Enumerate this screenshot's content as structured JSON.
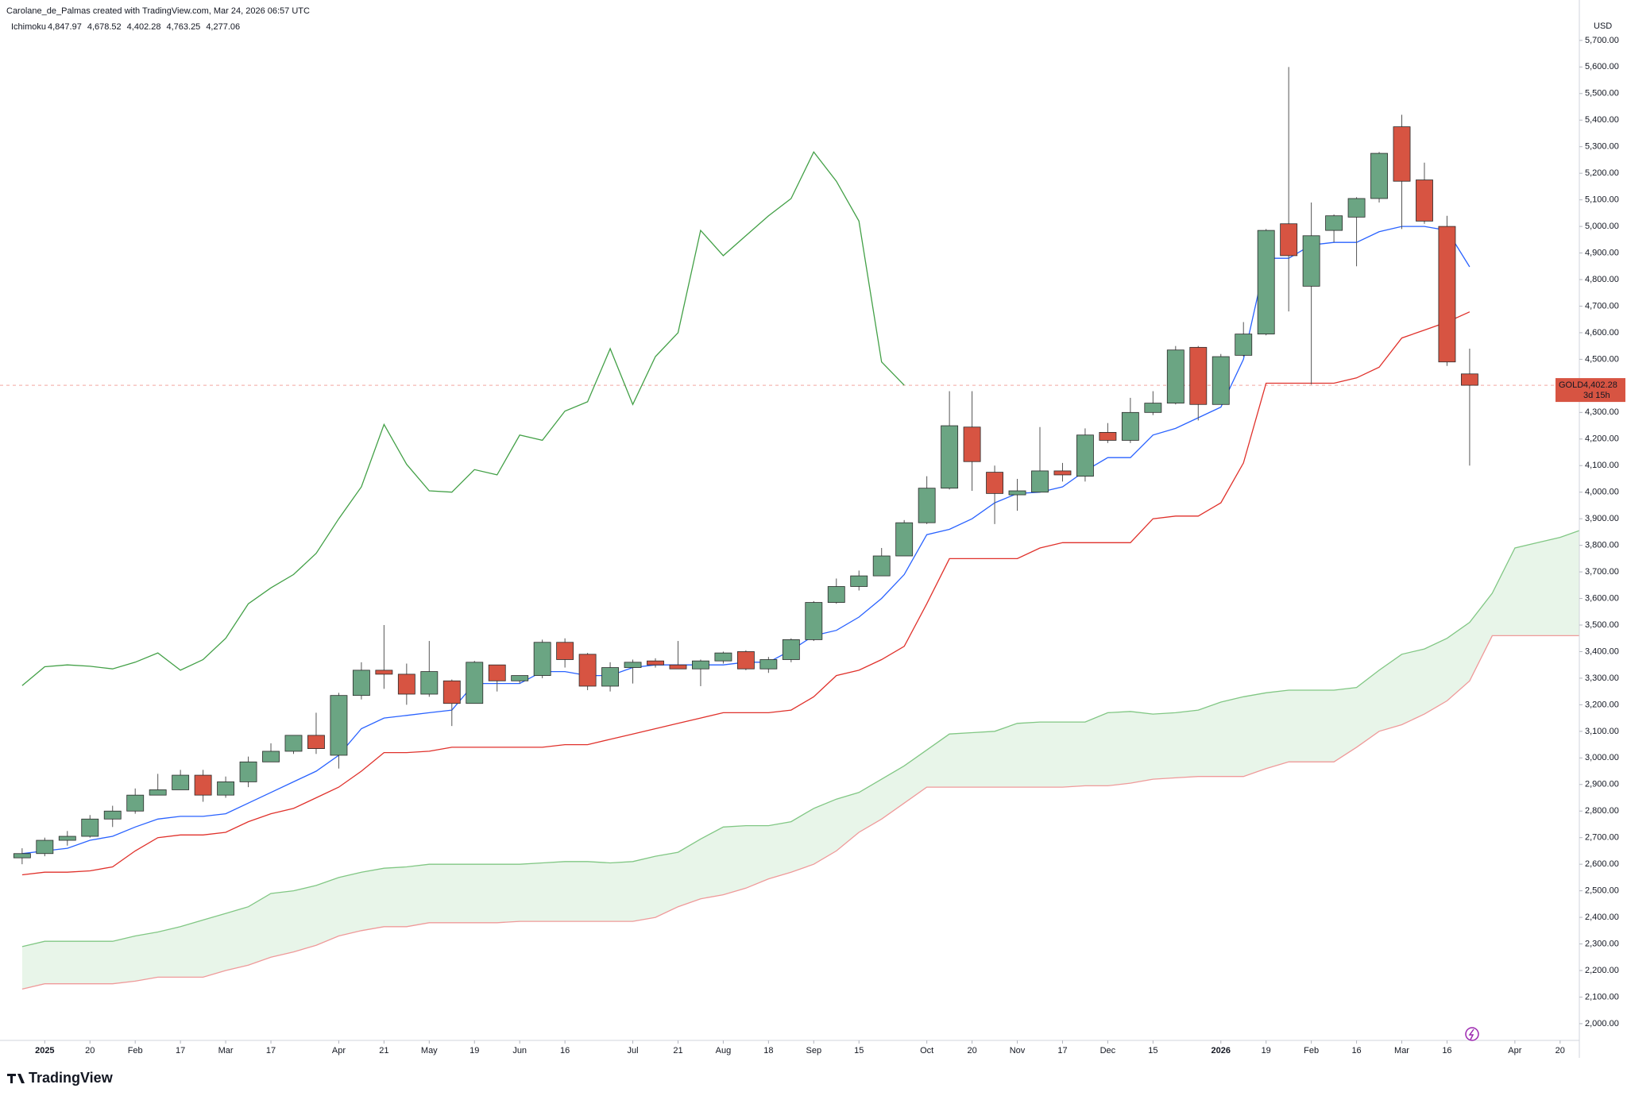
{
  "header": {
    "credit": "Carolane_de_Palmas created with TradingView.com, Mar 24, 2026 06:57 UTC"
  },
  "footer": {
    "logo": "TradingView"
  },
  "chart_data": {
    "type": "candlestick",
    "xlim": [
      -0.75,
      68.85
    ],
    "ylim": [
      1937,
      5852
    ],
    "y_unit": "USD",
    "candles": {
      "up_color": "#6ba583",
      "down_color": "#d75442",
      "open": [
        2624,
        2640,
        2690,
        2705,
        2770,
        2800,
        2860,
        2880,
        2935,
        2860,
        2910,
        2985,
        3025,
        3085,
        3010,
        3235,
        3330,
        3315,
        3240,
        3290,
        3205,
        3350,
        3290,
        3310,
        3435,
        3390,
        3270,
        3340,
        3365,
        3350,
        3335,
        3365,
        3400,
        3335,
        3370,
        3445,
        3585,
        3645,
        3685,
        3760,
        3885,
        4015,
        4245,
        4075,
        3990,
        4000,
        4080,
        4060,
        4225,
        4195,
        4300,
        4335,
        4545,
        4330,
        4515,
        4595,
        5010,
        4775,
        4985,
        5035,
        5105,
        5375,
        5175,
        5000,
        4445
      ],
      "high": [
        2660,
        2700,
        2725,
        2785,
        2820,
        2885,
        2940,
        2955,
        2955,
        2930,
        3005,
        3055,
        3085,
        3170,
        3245,
        3360,
        3500,
        3355,
        3440,
        3295,
        3365,
        3350,
        3310,
        3445,
        3450,
        3395,
        3360,
        3370,
        3375,
        3440,
        3370,
        3400,
        3405,
        3380,
        3450,
        3590,
        3675,
        3705,
        3790,
        3895,
        4060,
        4380,
        4380,
        4100,
        4050,
        4245,
        4110,
        4240,
        4260,
        4355,
        4380,
        4550,
        4550,
        4520,
        4640,
        4990,
        5600,
        5090,
        5045,
        5110,
        5280,
        5420,
        5240,
        5040,
        4540
      ],
      "low": [
        2600,
        2630,
        2670,
        2700,
        2740,
        2790,
        2860,
        2880,
        2835,
        2850,
        2890,
        2990,
        3015,
        3015,
        2960,
        3220,
        3260,
        3200,
        3230,
        3120,
        3205,
        3250,
        3280,
        3300,
        3340,
        3255,
        3250,
        3280,
        3340,
        3340,
        3270,
        3355,
        3330,
        3320,
        3360,
        3440,
        3580,
        3630,
        3685,
        3760,
        3880,
        4010,
        4005,
        3880,
        3930,
        4000,
        4040,
        4040,
        4185,
        4185,
        4290,
        4330,
        4270,
        4330,
        4510,
        4590,
        4680,
        4405,
        4940,
        4850,
        5090,
        4990,
        5010,
        4475,
        4100
      ],
      "close": [
        2640,
        2690,
        2705,
        2770,
        2800,
        2860,
        2880,
        2935,
        2860,
        2910,
        2985,
        3025,
        3085,
        3035,
        3235,
        3330,
        3315,
        3240,
        3325,
        3205,
        3360,
        3290,
        3310,
        3435,
        3370,
        3270,
        3340,
        3360,
        3350,
        3335,
        3365,
        3395,
        3335,
        3370,
        3445,
        3585,
        3645,
        3685,
        3760,
        3885,
        4015,
        4250,
        4115,
        3995,
        4005,
        4080,
        4065,
        4215,
        4195,
        4300,
        4335,
        4535,
        4330,
        4510,
        4595,
        4985,
        4890,
        4965,
        5040,
        5105,
        5275,
        5170,
        5020,
        4490,
        4402.28
      ]
    },
    "series": [
      {
        "color": "#2962ff",
        "values": [
          2640,
          2650,
          2660,
          2690,
          2705,
          2740,
          2770,
          2780,
          2780,
          2790,
          2830,
          2870,
          2910,
          2950,
          3010,
          3110,
          3150,
          3160,
          3170,
          3180,
          3280,
          3280,
          3280,
          3325,
          3325,
          3310,
          3310,
          3340,
          3350,
          3350,
          3350,
          3350,
          3360,
          3360,
          3405,
          3460,
          3480,
          3530,
          3600,
          3690,
          3840,
          3860,
          3900,
          3960,
          3995,
          4000,
          4020,
          4080,
          4130,
          4130,
          4215,
          4240,
          4280,
          4320,
          4500,
          4880,
          4880,
          4930,
          4940,
          4940,
          4980,
          5000,
          5000,
          4985,
          4847.97
        ]
      },
      {
        "color": "#e0312b",
        "values": [
          2560,
          2570,
          2570,
          2575,
          2590,
          2650,
          2700,
          2710,
          2710,
          2720,
          2760,
          2790,
          2810,
          2850,
          2890,
          2950,
          3020,
          3020,
          3025,
          3040,
          3040,
          3040,
          3040,
          3040,
          3050,
          3050,
          3070,
          3090,
          3110,
          3130,
          3150,
          3170,
          3170,
          3170,
          3180,
          3230,
          3310,
          3330,
          3370,
          3420,
          3580,
          3750,
          3750,
          3750,
          3750,
          3790,
          3810,
          3810,
          3810,
          3810,
          3900,
          3910,
          3910,
          3960,
          4110,
          4410,
          4410,
          4410,
          4410,
          4430,
          4470,
          4580,
          4610,
          4640,
          4678.52
        ]
      },
      {
        "color": "#43a047",
        "values": [
          3272,
          3343,
          3350,
          3345,
          3335,
          3360,
          3395,
          3330,
          3370,
          3450,
          3580,
          3640,
          3690,
          3770,
          3900,
          4020,
          4255,
          4105,
          4005,
          4000,
          4085,
          4065,
          4215,
          4195,
          4305,
          4340,
          4540,
          4330,
          4510,
          4600,
          4985,
          4890,
          4965,
          5040,
          5105,
          5280,
          5170,
          5020,
          4490,
          4402.28
        ]
      },
      {
        "color": "#81c784",
        "values": [
          2290,
          2310,
          2310,
          2310,
          2310,
          2330,
          2345,
          2365,
          2390,
          2415,
          2440,
          2490,
          2500,
          2520,
          2550,
          2570,
          2585,
          2590,
          2600,
          2600,
          2600,
          2600,
          2600,
          2605,
          2610,
          2610,
          2605,
          2610,
          2630,
          2645,
          2695,
          2740,
          2745,
          2745,
          2760,
          2810,
          2845,
          2870,
          2920,
          2970,
          3030,
          3090,
          3095,
          3100,
          3130,
          3135,
          3135,
          3135,
          3170,
          3175,
          3165,
          3170,
          3180,
          3210,
          3230,
          3245,
          3255,
          3255,
          3255,
          3265,
          3330,
          3390,
          3410,
          3450,
          3510,
          3620,
          3790,
          3810,
          3830,
          3860
        ]
      },
      {
        "color": "#ef9a9a",
        "values": [
          2130,
          2150,
          2150,
          2150,
          2150,
          2160,
          2175,
          2175,
          2175,
          2200,
          2220,
          2250,
          2270,
          2295,
          2330,
          2350,
          2365,
          2365,
          2380,
          2380,
          2380,
          2380,
          2385,
          2385,
          2385,
          2385,
          2385,
          2385,
          2400,
          2440,
          2470,
          2485,
          2510,
          2545,
          2570,
          2600,
          2650,
          2720,
          2770,
          2830,
          2890,
          2890,
          2890,
          2890,
          2890,
          2890,
          2890,
          2895,
          2895,
          2905,
          2920,
          2925,
          2930,
          2930,
          2930,
          2960,
          2985,
          2985,
          2985,
          3040,
          3100,
          3125,
          3165,
          3215,
          3290,
          3460,
          3460,
          3460,
          3460,
          3460
        ]
      }
    ],
    "cloud_color": "#e8f5e9",
    "legend": {
      "title": "Ichimoku",
      "labels": [
        "4,847.97",
        "4,678.52",
        "4,402.28",
        "4,763.25",
        "4,277.06"
      ]
    },
    "last_price": {
      "symbol": "GOLD",
      "value": 4402.28,
      "label": "4,402.28",
      "countdown": "3d 15h",
      "color": "#d75442"
    },
    "yticks": [
      {
        "value": 2000,
        "label": "2,000.00"
      },
      {
        "value": 2100,
        "label": "2,100.00"
      },
      {
        "value": 2200,
        "label": "2,200.00"
      },
      {
        "value": 2300,
        "label": "2,300.00"
      },
      {
        "value": 2400,
        "label": "2,400.00"
      },
      {
        "value": 2500,
        "label": "2,500.00"
      },
      {
        "value": 2600,
        "label": "2,600.00"
      },
      {
        "value": 2700,
        "label": "2,700.00"
      },
      {
        "value": 2800,
        "label": "2,800.00"
      },
      {
        "value": 2900,
        "label": "2,900.00"
      },
      {
        "value": 3000,
        "label": "3,000.00"
      },
      {
        "value": 3100,
        "label": "3,100.00"
      },
      {
        "value": 3200,
        "label": "3,200.00"
      },
      {
        "value": 3300,
        "label": "3,300.00"
      },
      {
        "value": 3400,
        "label": "3,400.00"
      },
      {
        "value": 3500,
        "label": "3,500.00"
      },
      {
        "value": 3600,
        "label": "3,600.00"
      },
      {
        "value": 3700,
        "label": "3,700.00"
      },
      {
        "value": 3800,
        "label": "3,800.00"
      },
      {
        "value": 3900,
        "label": "3,900.00"
      },
      {
        "value": 4000,
        "label": "4,000.00"
      },
      {
        "value": 4100,
        "label": "4,100.00"
      },
      {
        "value": 4200,
        "label": "4,200.00"
      },
      {
        "value": 4300,
        "label": "4,300.00"
      },
      {
        "value": 4400,
        "label": "4,400.00"
      },
      {
        "value": 4500,
        "label": "4,500.00"
      },
      {
        "value": 4600,
        "label": "4,600.00"
      },
      {
        "value": 4700,
        "label": "4,700.00"
      },
      {
        "value": 4800,
        "label": "4,800.00"
      },
      {
        "value": 4900,
        "label": "4,900.00"
      },
      {
        "value": 5000,
        "label": "5,000.00"
      },
      {
        "value": 5100,
        "label": "5,100.00"
      },
      {
        "value": 5200,
        "label": "5,200.00"
      },
      {
        "value": 5300,
        "label": "5,300.00"
      },
      {
        "value": 5400,
        "label": "5,400.00"
      },
      {
        "value": 5500,
        "label": "5,500.00"
      },
      {
        "value": 5600,
        "label": "5,600.00"
      },
      {
        "value": 5700,
        "label": "5,700.00"
      }
    ],
    "xticks": [
      {
        "value": 1,
        "label": "2025"
      },
      {
        "value": 3,
        "label": "20"
      },
      {
        "value": 5,
        "label": "Feb"
      },
      {
        "value": 7,
        "label": "17"
      },
      {
        "value": 9,
        "label": "Mar"
      },
      {
        "value": 11,
        "label": "17"
      },
      {
        "value": 14,
        "label": "Apr"
      },
      {
        "value": 16,
        "label": "21"
      },
      {
        "value": 18,
        "label": "May"
      },
      {
        "value": 20,
        "label": "19"
      },
      {
        "value": 22,
        "label": "Jun"
      },
      {
        "value": 24,
        "label": "16"
      },
      {
        "value": 27,
        "label": "Jul"
      },
      {
        "value": 29,
        "label": "21"
      },
      {
        "value": 31,
        "label": "Aug"
      },
      {
        "value": 33,
        "label": "18"
      },
      {
        "value": 35,
        "label": "Sep"
      },
      {
        "value": 37,
        "label": "15"
      },
      {
        "value": 40,
        "label": "Oct"
      },
      {
        "value": 42,
        "label": "20"
      },
      {
        "value": 44,
        "label": "Nov"
      },
      {
        "value": 46,
        "label": "17"
      },
      {
        "value": 48,
        "label": "Dec"
      },
      {
        "value": 50,
        "label": "15"
      },
      {
        "value": 53,
        "label": "2026"
      },
      {
        "value": 55,
        "label": "19"
      },
      {
        "value": 57,
        "label": "Feb"
      },
      {
        "value": 59,
        "label": "16"
      },
      {
        "value": 61,
        "label": "Mar"
      },
      {
        "value": 63,
        "label": "16"
      },
      {
        "value": 66,
        "label": "Apr"
      },
      {
        "value": 68,
        "label": "20"
      }
    ]
  }
}
